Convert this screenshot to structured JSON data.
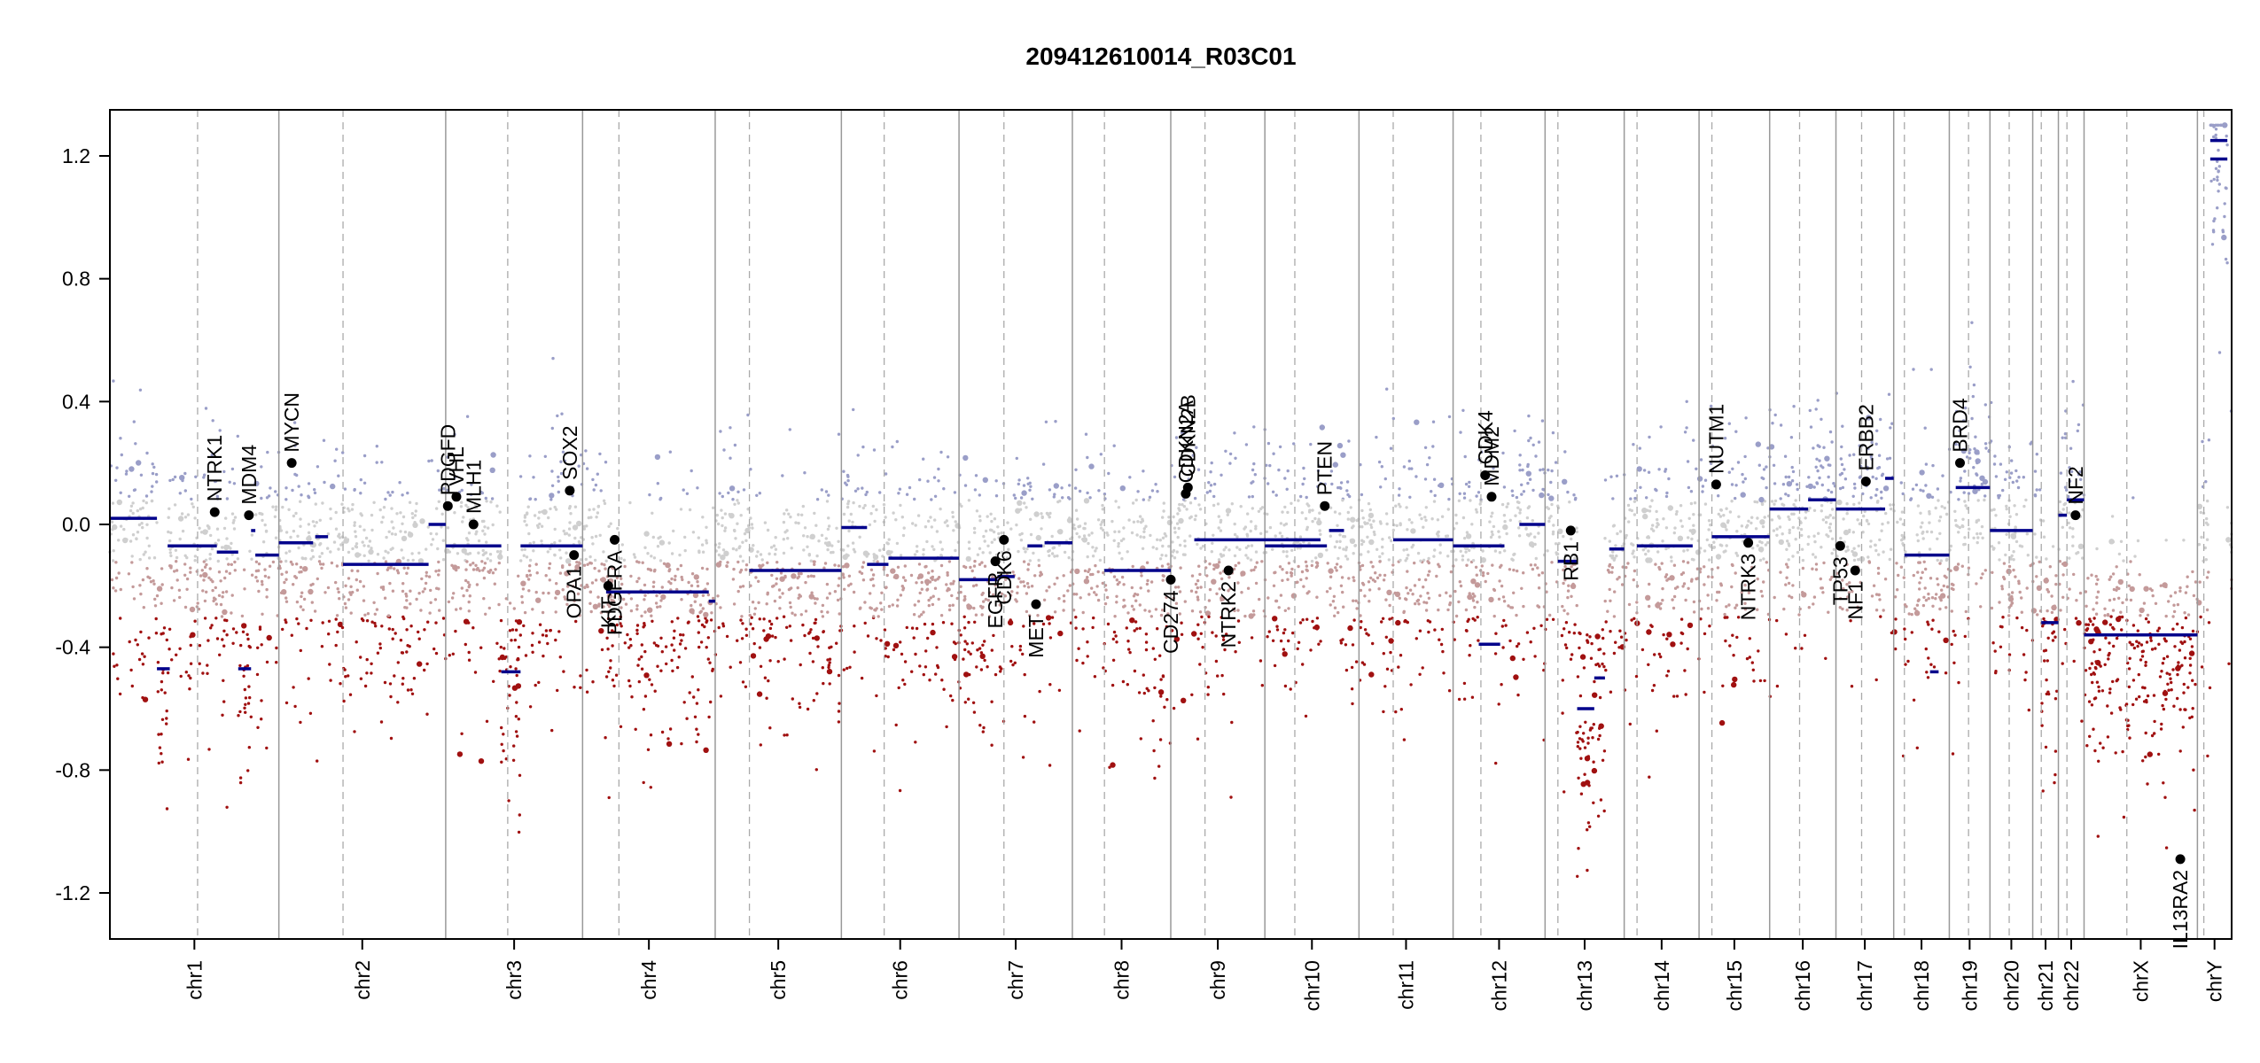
{
  "chart_data": {
    "type": "scatter",
    "title": "209412610014_R03C01",
    "xlabel": "",
    "ylabel": "",
    "ylim": [
      -1.35,
      1.35
    ],
    "yticks": [
      -1.2,
      -0.8,
      -0.4,
      0.0,
      0.4,
      0.8,
      1.2
    ],
    "ytick_labels": [
      "-1.2",
      "-0.8",
      "-0.4",
      "0.0",
      "0.4",
      "0.8",
      "1.2"
    ],
    "grid": false,
    "x_axis": "genome position (chromosomes concatenated)",
    "chromosomes": [
      {
        "name": "chr1",
        "start": 0.0,
        "end": 7.9,
        "centromere": 4.1
      },
      {
        "name": "chr2",
        "start": 7.9,
        "end": 15.7,
        "centromere": 10.9
      },
      {
        "name": "chr3",
        "start": 15.7,
        "end": 22.1,
        "centromere": 18.6
      },
      {
        "name": "chr4",
        "start": 22.1,
        "end": 28.3,
        "centromere": 23.8
      },
      {
        "name": "chr5",
        "start": 28.3,
        "end": 34.2,
        "centromere": 29.9
      },
      {
        "name": "chr6",
        "start": 34.2,
        "end": 39.7,
        "centromere": 36.2
      },
      {
        "name": "chr7",
        "start": 39.7,
        "end": 45.0,
        "centromere": 41.8
      },
      {
        "name": "chr8",
        "start": 45.0,
        "end": 49.6,
        "centromere": 46.5
      },
      {
        "name": "chr9",
        "start": 49.6,
        "end": 54.0,
        "centromere": 51.2
      },
      {
        "name": "chr10",
        "start": 54.0,
        "end": 58.4,
        "centromere": 55.4
      },
      {
        "name": "chr11",
        "start": 58.4,
        "end": 62.8,
        "centromere": 60.0
      },
      {
        "name": "chr12",
        "start": 62.8,
        "end": 67.1,
        "centromere": 64.1
      },
      {
        "name": "chr13",
        "start": 67.1,
        "end": 70.8,
        "centromere": 67.7
      },
      {
        "name": "chr14",
        "start": 70.8,
        "end": 74.3,
        "centromere": 71.4
      },
      {
        "name": "chr15",
        "start": 74.3,
        "end": 77.6,
        "centromere": 74.9
      },
      {
        "name": "chr16",
        "start": 77.6,
        "end": 80.7,
        "centromere": 79.0
      },
      {
        "name": "chr17",
        "start": 80.7,
        "end": 83.4,
        "centromere": 81.9
      },
      {
        "name": "chr18",
        "start": 83.4,
        "end": 86.0,
        "centromere": 83.9
      },
      {
        "name": "chr19",
        "start": 86.0,
        "end": 87.9,
        "centromere": 86.9
      },
      {
        "name": "chr20",
        "start": 87.9,
        "end": 89.9,
        "centromere": 88.8
      },
      {
        "name": "chr21",
        "start": 89.9,
        "end": 91.1,
        "centromere": 90.3
      },
      {
        "name": "chr22",
        "start": 91.1,
        "end": 92.3,
        "centromere": 91.5
      },
      {
        "name": "chrX",
        "start": 92.3,
        "end": 97.6,
        "centromere": 94.3
      },
      {
        "name": "chrY",
        "start": 97.6,
        "end": 99.2,
        "centromere": 97.9
      }
    ],
    "segments": [
      {
        "x0": 0.0,
        "x1": 2.2,
        "y": 0.02
      },
      {
        "x0": 2.7,
        "x1": 5.0,
        "y": -0.07
      },
      {
        "x0": 2.2,
        "x1": 2.8,
        "y": -0.47
      },
      {
        "x0": 5.0,
        "x1": 6.0,
        "y": -0.09
      },
      {
        "x0": 6.0,
        "x1": 6.6,
        "y": -0.47
      },
      {
        "x0": 6.6,
        "x1": 6.8,
        "y": -0.02
      },
      {
        "x0": 6.8,
        "x1": 7.9,
        "y": -0.1
      },
      {
        "x0": 7.9,
        "x1": 9.5,
        "y": -0.06
      },
      {
        "x0": 9.6,
        "x1": 10.2,
        "y": -0.04
      },
      {
        "x0": 10.9,
        "x1": 14.9,
        "y": -0.13
      },
      {
        "x0": 14.9,
        "x1": 15.7,
        "y": 0.0
      },
      {
        "x0": 15.7,
        "x1": 18.3,
        "y": -0.07
      },
      {
        "x0": 18.3,
        "x1": 19.2,
        "y": -0.48
      },
      {
        "x0": 19.2,
        "x1": 22.1,
        "y": -0.07
      },
      {
        "x0": 23.2,
        "x1": 28.0,
        "y": -0.22
      },
      {
        "x0": 28.0,
        "x1": 28.3,
        "y": -0.25
      },
      {
        "x0": 29.9,
        "x1": 34.2,
        "y": -0.15
      },
      {
        "x0": 34.2,
        "x1": 35.4,
        "y": -0.01
      },
      {
        "x0": 35.4,
        "x1": 36.4,
        "y": -0.13
      },
      {
        "x0": 36.4,
        "x1": 39.7,
        "y": -0.11
      },
      {
        "x0": 39.7,
        "x1": 41.5,
        "y": -0.18
      },
      {
        "x0": 41.5,
        "x1": 42.3,
        "y": -0.17
      },
      {
        "x0": 42.9,
        "x1": 43.6,
        "y": -0.07
      },
      {
        "x0": 43.7,
        "x1": 45.0,
        "y": -0.06
      },
      {
        "x0": 46.5,
        "x1": 49.6,
        "y": -0.15
      },
      {
        "x0": 50.7,
        "x1": 56.6,
        "y": -0.05
      },
      {
        "x0": 54.0,
        "x1": 56.9,
        "y": -0.07
      },
      {
        "x0": 57.0,
        "x1": 57.7,
        "y": -0.02
      },
      {
        "x0": 60.0,
        "x1": 62.8,
        "y": -0.05
      },
      {
        "x0": 62.8,
        "x1": 65.2,
        "y": -0.07
      },
      {
        "x0": 64.0,
        "x1": 65.0,
        "y": -0.39
      },
      {
        "x0": 65.9,
        "x1": 67.1,
        "y": 0.0
      },
      {
        "x0": 67.7,
        "x1": 68.6,
        "y": -0.12
      },
      {
        "x0": 68.6,
        "x1": 69.4,
        "y": -0.6
      },
      {
        "x0": 69.4,
        "x1": 69.9,
        "y": -0.5
      },
      {
        "x0": 70.1,
        "x1": 70.8,
        "y": -0.08
      },
      {
        "x0": 71.4,
        "x1": 74.0,
        "y": -0.07
      },
      {
        "x0": 74.9,
        "x1": 77.6,
        "y": -0.04
      },
      {
        "x0": 77.6,
        "x1": 79.4,
        "y": 0.05
      },
      {
        "x0": 79.4,
        "x1": 80.7,
        "y": 0.08
      },
      {
        "x0": 80.7,
        "x1": 83.0,
        "y": 0.05
      },
      {
        "x0": 83.0,
        "x1": 83.4,
        "y": 0.15
      },
      {
        "x0": 83.9,
        "x1": 86.0,
        "y": -0.1
      },
      {
        "x0": 85.1,
        "x1": 85.5,
        "y": -0.48
      },
      {
        "x0": 86.3,
        "x1": 87.9,
        "y": 0.12
      },
      {
        "x0": 87.9,
        "x1": 89.9,
        "y": -0.02
      },
      {
        "x0": 90.3,
        "x1": 91.1,
        "y": -0.32
      },
      {
        "x0": 91.1,
        "x1": 91.5,
        "y": 0.03
      },
      {
        "x0": 91.5,
        "x1": 92.3,
        "y": 0.08
      },
      {
        "x0": 92.3,
        "x1": 97.6,
        "y": -0.36
      },
      {
        "x0": 98.2,
        "x1": 99.0,
        "y": 1.19
      },
      {
        "x0": 98.2,
        "x1": 99.0,
        "y": 1.25
      }
    ],
    "genes": [
      {
        "name": "NTRK1",
        "x": 4.9,
        "y": 0.04
      },
      {
        "name": "MDM4",
        "x": 6.5,
        "y": 0.03
      },
      {
        "name": "MYCN",
        "x": 8.5,
        "y": 0.2
      },
      {
        "name": "PDGFD",
        "x": 15.8,
        "y": 0.06
      },
      {
        "name": "VHL",
        "x": 16.2,
        "y": 0.09
      },
      {
        "name": "MLH1",
        "x": 17.0,
        "y": 0.0
      },
      {
        "name": "SOX2",
        "x": 21.5,
        "y": 0.11
      },
      {
        "name": "OPA1",
        "x": 21.7,
        "y": -0.1
      },
      {
        "name": "PDGFRA",
        "x": 23.6,
        "y": -0.05
      },
      {
        "name": "KIT",
        "x": 23.3,
        "y": -0.2
      },
      {
        "name": "EGFR",
        "x": 41.4,
        "y": -0.12
      },
      {
        "name": "CDK6",
        "x": 41.8,
        "y": -0.05
      },
      {
        "name": "MET",
        "x": 43.3,
        "y": -0.26
      },
      {
        "name": "CD274",
        "x": 49.6,
        "y": -0.18
      },
      {
        "name": "CDKN2A",
        "x": 50.3,
        "y": 0.1
      },
      {
        "name": "CDKN2B",
        "x": 50.4,
        "y": 0.12
      },
      {
        "name": "NTRK2",
        "x": 52.3,
        "y": -0.15
      },
      {
        "name": "PTEN",
        "x": 56.8,
        "y": 0.06
      },
      {
        "name": "CDK4",
        "x": 64.3,
        "y": 0.16
      },
      {
        "name": "MDM2",
        "x": 64.6,
        "y": 0.09
      },
      {
        "name": "RB1",
        "x": 68.3,
        "y": -0.02
      },
      {
        "name": "NUTM1",
        "x": 75.1,
        "y": 0.13
      },
      {
        "name": "NTRK3",
        "x": 76.6,
        "y": -0.06
      },
      {
        "name": "TP53",
        "x": 80.9,
        "y": -0.07
      },
      {
        "name": "NF1",
        "x": 81.6,
        "y": -0.15
      },
      {
        "name": "ERBB2",
        "x": 82.1,
        "y": 0.14
      },
      {
        "name": "BRD4",
        "x": 86.5,
        "y": 0.2
      },
      {
        "name": "NF2",
        "x": 91.9,
        "y": 0.03
      },
      {
        "name": "IL13RA2",
        "x": 96.8,
        "y": -1.09
      }
    ],
    "colors": {
      "gain": "#9a9ec8",
      "neutral": "#cfcfcf",
      "loss": "#a01010",
      "segment": "#00008b",
      "gene_marker": "#000000"
    }
  }
}
